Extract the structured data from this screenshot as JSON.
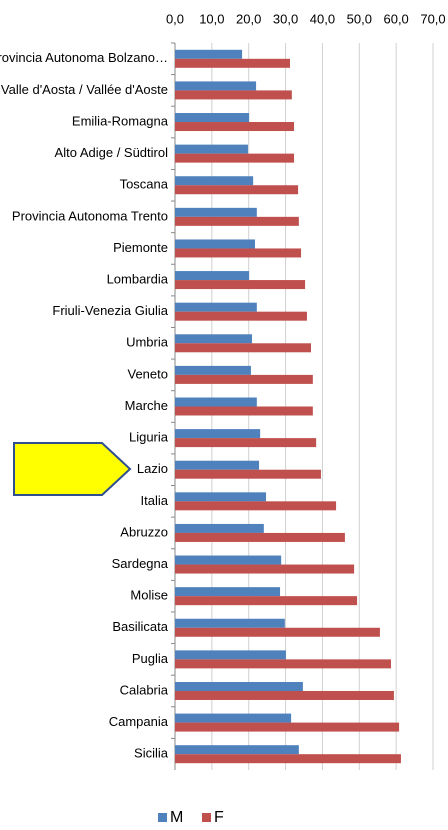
{
  "chart_data": {
    "type": "bar",
    "orientation": "horizontal",
    "categories": [
      "Provincia Autonoma Bolzano…",
      "Valle d'Aosta / Vallée d'Aoste",
      "Emilia-Romagna",
      "Alto Adige / Südtirol",
      "Toscana",
      "Provincia Autonoma Trento",
      "Piemonte",
      "Lombardia",
      "Friuli-Venezia Giulia",
      "Umbria",
      "Veneto",
      "Marche",
      "Liguria",
      "Lazio",
      "Italia",
      "Abruzzo",
      "Sardegna",
      "Molise",
      "Basilicata",
      "Puglia",
      "Calabria",
      "Campania",
      "Sicilia"
    ],
    "series": [
      {
        "name": "M",
        "color": "#4f81bd",
        "values": [
          18.2,
          22.0,
          20.1,
          19.8,
          21.2,
          22.2,
          21.7,
          20.1,
          22.2,
          20.9,
          20.6,
          22.2,
          23.1,
          22.8,
          24.7,
          24.1,
          28.8,
          28.5,
          29.8,
          30.1,
          34.7,
          31.5,
          33.6
        ]
      },
      {
        "name": "F",
        "color": "#c0504d",
        "values": [
          31.2,
          31.7,
          32.3,
          32.3,
          33.4,
          33.6,
          34.2,
          35.3,
          35.8,
          36.9,
          37.4,
          37.4,
          38.3,
          39.6,
          43.7,
          46.1,
          48.6,
          49.4,
          55.6,
          58.6,
          59.4,
          60.8,
          61.3
        ]
      }
    ],
    "xlim": [
      0,
      70
    ],
    "xticks": [
      {
        "value": 0,
        "label": "0,0"
      },
      {
        "value": 10,
        "label": "10,0"
      },
      {
        "value": 20,
        "label": "20,0"
      },
      {
        "value": 30,
        "label": "30,0"
      },
      {
        "value": 40,
        "label": "40,0"
      },
      {
        "value": 50,
        "label": "50,0"
      },
      {
        "value": 60,
        "label": "60,0"
      },
      {
        "value": 70,
        "label": "70,0"
      }
    ],
    "grid": true,
    "legend": "bottom"
  }
}
